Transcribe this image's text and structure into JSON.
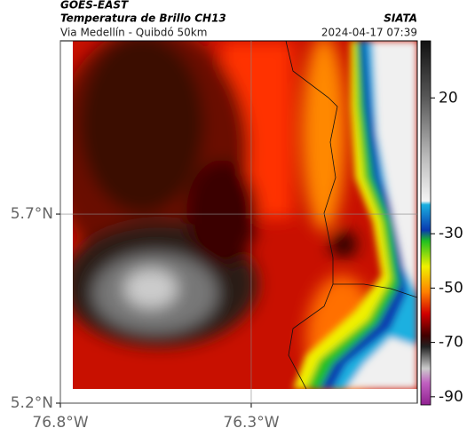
{
  "header": {
    "satellite": "GOES-EAST",
    "product": "Temperatura de Brillo CH13",
    "route": "Via Medellín - Quibdó 50km",
    "source": "SIATA",
    "datetime": "2024-04-17 07:39"
  },
  "map": {
    "xlim": [
      -76.8,
      -75.865
    ],
    "ylim": [
      5.2,
      6.158
    ],
    "xticks": [
      {
        "value": -76.8,
        "label": "76.8°W"
      },
      {
        "value": -76.3,
        "label": "76.3°W"
      }
    ],
    "yticks": [
      {
        "value": 5.7,
        "label": "5.7°N"
      },
      {
        "value": 5.2,
        "label": "5.2°N"
      }
    ],
    "grid": true
  },
  "colorbar": {
    "lim": [
      -93,
      41
    ],
    "ticks": [
      20,
      -30,
      -50,
      -70,
      -90
    ]
  }
}
